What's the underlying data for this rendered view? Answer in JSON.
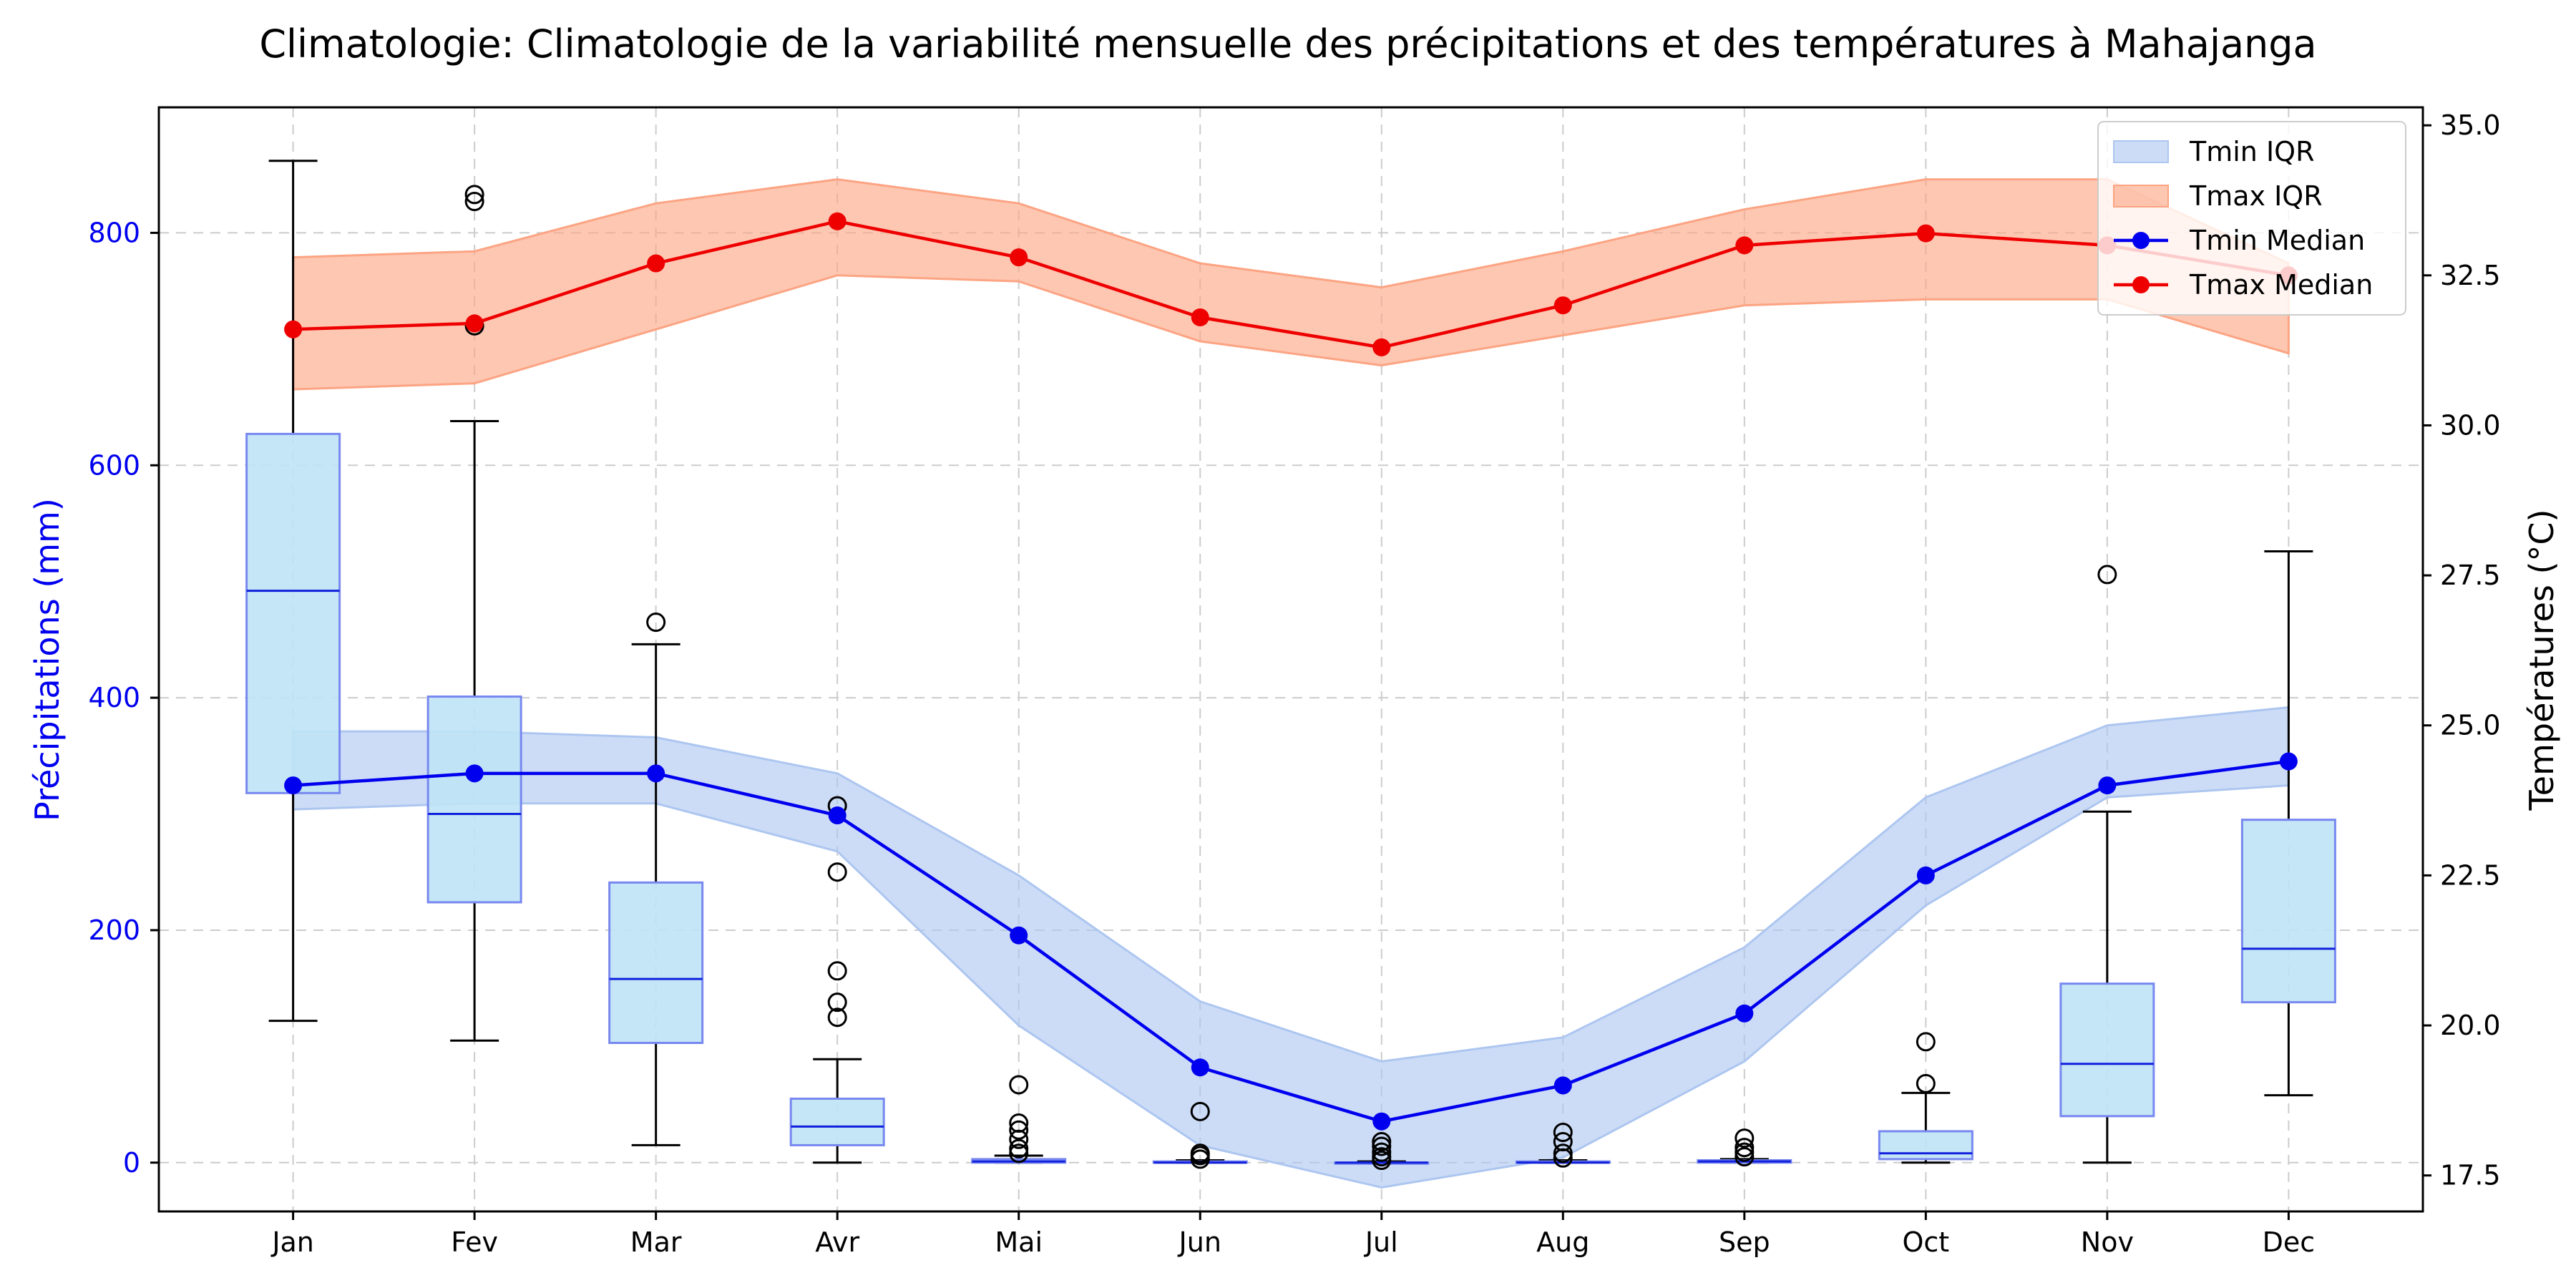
{
  "chart_data": {
    "type": "box+line",
    "title": "Climatologie: Climatologie de la variabilité mensuelle des précipitations et des températures à Mahajanga",
    "xlabel": "",
    "ylabel_left": "Précipitations (mm)",
    "ylabel_right": "Températures (°C)",
    "categories": [
      "Jan",
      "Fev",
      "Mar",
      "Avr",
      "Mai",
      "Jun",
      "Jul",
      "Aug",
      "Sep",
      "Oct",
      "Nov",
      "Dec"
    ],
    "ylim_left": [
      -42,
      908
    ],
    "ylim_right": [
      16.9,
      35.3
    ],
    "yticks_left": [
      0,
      200,
      400,
      600,
      800
    ],
    "yticks_right": [
      17.5,
      20.0,
      22.5,
      25.0,
      27.5,
      30.0,
      32.5,
      35.0
    ],
    "ytick_labels_right": [
      "17.5",
      "20.0",
      "22.5",
      "25.0",
      "27.5",
      "30.0",
      "32.5",
      "35.0"
    ],
    "grid": true,
    "legend_position": "top-right",
    "precipitation_boxes": [
      {
        "month": "Jan",
        "whislo": 122,
        "q1": 318,
        "median": 492,
        "q3": 627,
        "whishi": 862,
        "fliers": []
      },
      {
        "month": "Fev",
        "whislo": 105,
        "q1": 224,
        "median": 300,
        "q3": 401,
        "whishi": 638,
        "fliers": [
          720,
          827,
          833
        ]
      },
      {
        "month": "Mar",
        "whislo": 15,
        "q1": 103,
        "median": 158,
        "q3": 241,
        "whishi": 446,
        "fliers": [
          465
        ]
      },
      {
        "month": "Avr",
        "whislo": 0,
        "q1": 15,
        "median": 31,
        "q3": 55,
        "whishi": 89,
        "fliers": [
          125,
          138,
          165,
          250,
          307
        ]
      },
      {
        "month": "Mai",
        "whislo": 0,
        "q1": 0,
        "median": 1,
        "q3": 3,
        "whishi": 6,
        "fliers": [
          8,
          12,
          20,
          28,
          34,
          67
        ]
      },
      {
        "month": "Jun",
        "whislo": 0,
        "q1": 0,
        "median": 0,
        "q3": 1,
        "whishi": 2,
        "fliers": [
          3,
          6,
          8,
          44
        ]
      },
      {
        "month": "Jul",
        "whislo": 0,
        "q1": 0,
        "median": 0,
        "q3": 0,
        "whishi": 1,
        "fliers": [
          2,
          5,
          9,
          14,
          18
        ]
      },
      {
        "month": "Aug",
        "whislo": 0,
        "q1": 0,
        "median": 0,
        "q3": 1,
        "whishi": 2,
        "fliers": [
          4,
          8,
          18,
          26
        ]
      },
      {
        "month": "Sep",
        "whislo": 0,
        "q1": 0,
        "median": 1,
        "q3": 2,
        "whishi": 3,
        "fliers": [
          5,
          9,
          13,
          21
        ]
      },
      {
        "month": "Oct",
        "whislo": 0,
        "q1": 3,
        "median": 8,
        "q3": 27,
        "whishi": 60,
        "fliers": [
          68,
          104
        ]
      },
      {
        "month": "Nov",
        "whislo": 0,
        "q1": 40,
        "median": 85,
        "q3": 154,
        "whishi": 302,
        "fliers": [
          506
        ]
      },
      {
        "month": "Dec",
        "whislo": 58,
        "q1": 138,
        "median": 184,
        "q3": 295,
        "whishi": 526,
        "fliers": []
      }
    ],
    "series": [
      {
        "name": "Tmin IQR",
        "kind": "band",
        "color": "#adc6f0",
        "low": [
          23.6,
          23.7,
          23.7,
          22.9,
          20.0,
          18.0,
          17.3,
          17.8,
          19.4,
          22.0,
          23.8,
          24.0
        ],
        "high": [
          24.9,
          24.9,
          24.8,
          24.2,
          22.5,
          20.4,
          19.4,
          19.8,
          21.3,
          23.8,
          25.0,
          25.3
        ]
      },
      {
        "name": "Tmax IQR",
        "kind": "band",
        "color": "#fca483",
        "low": [
          30.6,
          30.7,
          31.6,
          32.5,
          32.4,
          31.4,
          31.0,
          31.5,
          32.0,
          32.1,
          32.1,
          31.2
        ],
        "high": [
          32.8,
          32.9,
          33.7,
          34.1,
          33.7,
          32.7,
          32.3,
          32.9,
          33.6,
          34.1,
          34.1,
          32.7
        ]
      },
      {
        "name": "Tmin Median",
        "kind": "line",
        "color": "#0000ee",
        "values": [
          24.0,
          24.2,
          24.2,
          23.5,
          21.5,
          19.3,
          18.4,
          19.0,
          20.2,
          22.5,
          24.0,
          24.4
        ]
      },
      {
        "name": "Tmax Median",
        "kind": "line",
        "color": "#ee0000",
        "values": [
          31.6,
          31.7,
          32.7,
          33.4,
          32.8,
          31.8,
          31.3,
          32.0,
          33.0,
          33.2,
          33.0,
          32.5
        ]
      }
    ],
    "colors": {
      "box_fill": "#bfe3f5",
      "box_edge": "#7888f0",
      "box_median": "#1020dd",
      "left_axis": "#0000ee",
      "grid": "#cccccc"
    }
  }
}
